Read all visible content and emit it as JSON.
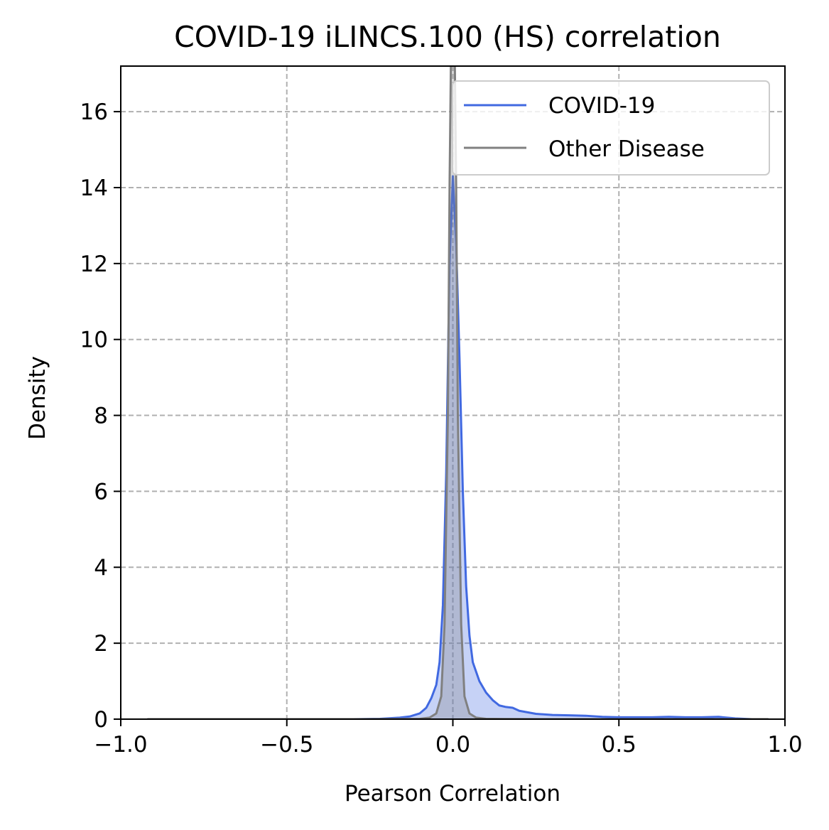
{
  "chart_data": {
    "type": "area",
    "title": "COVID-19 iLINCS.100 (HS) correlation",
    "xlabel": "Pearson Correlation",
    "ylabel": "Density",
    "xlim": [
      -1.0,
      1.0
    ],
    "ylim": [
      0,
      17.2
    ],
    "grid": true,
    "legend_position": "top-right",
    "xticks": [
      {
        "value": -1.0,
        "label": "−1.0"
      },
      {
        "value": -0.5,
        "label": "−0.5"
      },
      {
        "value": 0.0,
        "label": "0.0"
      },
      {
        "value": 0.5,
        "label": "0.5"
      },
      {
        "value": 1.0,
        "label": "1.0"
      }
    ],
    "yticks": [
      {
        "value": 0,
        "label": "0"
      },
      {
        "value": 2,
        "label": "2"
      },
      {
        "value": 4,
        "label": "4"
      },
      {
        "value": 6,
        "label": "6"
      },
      {
        "value": 8,
        "label": "8"
      },
      {
        "value": 10,
        "label": "10"
      },
      {
        "value": 12,
        "label": "12"
      },
      {
        "value": 14,
        "label": "14"
      },
      {
        "value": 16,
        "label": "16"
      }
    ],
    "series": [
      {
        "name": "COVID-19",
        "color": "#4169e1",
        "fill": "#4169e1",
        "x": [
          -0.92,
          -0.6,
          -0.4,
          -0.3,
          -0.22,
          -0.16,
          -0.13,
          -0.1,
          -0.08,
          -0.065,
          -0.05,
          -0.04,
          -0.03,
          -0.02,
          -0.01,
          0.0,
          0.01,
          0.02,
          0.03,
          0.04,
          0.05,
          0.06,
          0.08,
          0.1,
          0.12,
          0.14,
          0.16,
          0.18,
          0.2,
          0.25,
          0.3,
          0.35,
          0.4,
          0.45,
          0.5,
          0.55,
          0.6,
          0.65,
          0.7,
          0.75,
          0.8,
          0.85,
          0.9,
          0.95
        ],
        "y": [
          0.0,
          0.0,
          0.0,
          0.0,
          0.01,
          0.04,
          0.07,
          0.15,
          0.3,
          0.55,
          0.9,
          1.5,
          3.0,
          6.5,
          12.0,
          14.3,
          12.5,
          9.5,
          6.0,
          3.5,
          2.2,
          1.5,
          1.0,
          0.7,
          0.5,
          0.36,
          0.32,
          0.3,
          0.22,
          0.14,
          0.11,
          0.1,
          0.09,
          0.06,
          0.05,
          0.05,
          0.05,
          0.06,
          0.05,
          0.05,
          0.06,
          0.02,
          0.0,
          0.0
        ]
      },
      {
        "name": "Other Disease",
        "color": "#808080",
        "fill": "#808080",
        "x": [
          -0.92,
          -0.6,
          -0.3,
          -0.15,
          -0.1,
          -0.07,
          -0.05,
          -0.035,
          -0.025,
          -0.015,
          -0.01,
          -0.005,
          0.0,
          0.005,
          0.01,
          0.015,
          0.025,
          0.035,
          0.05,
          0.07,
          0.1,
          0.15,
          0.3,
          0.6,
          0.95
        ],
        "y": [
          0.0,
          0.0,
          0.0,
          0.005,
          0.01,
          0.04,
          0.15,
          0.6,
          2.5,
          8.0,
          14.0,
          18.0,
          20.0,
          18.0,
          14.0,
          8.0,
          2.5,
          0.6,
          0.15,
          0.04,
          0.01,
          0.005,
          0.0,
          0.0,
          0.0
        ]
      }
    ]
  }
}
